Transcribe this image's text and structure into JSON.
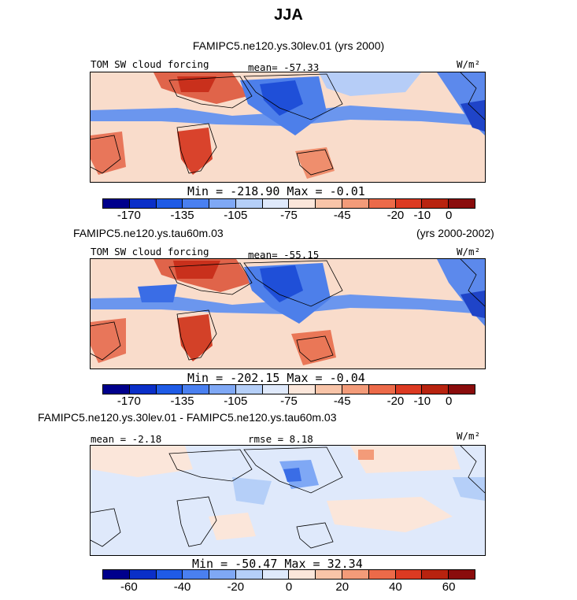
{
  "chart_data": {
    "type": "heatmap",
    "title": "JJA",
    "panels": [
      {
        "id": "p1",
        "case_title": "FAMIPC5.ne120.ys.30lev.01 (yrs 2000)",
        "left_label": "TOM SW cloud forcing",
        "center_label": "mean= -57.33",
        "right_label": "W/m²",
        "min_max": "Min = -218.90 Max =  -0.01",
        "levels": [
          "-170",
          "-135",
          "-105",
          "-75",
          "-45",
          "-20",
          "-10",
          "0"
        ],
        "field_min": -218.9,
        "field_max": -0.01,
        "field_mean": -57.33
      },
      {
        "id": "p2",
        "case_title": "FAMIPC5.ne120.ys.tau60m.03",
        "case_years": "(yrs 2000-2002)",
        "left_label": "TOM SW cloud forcing",
        "center_label": "mean= -55.15",
        "right_label": "W/m²",
        "min_max": "Min = -202.15 Max =  -0.04",
        "levels": [
          "-170",
          "-135",
          "-105",
          "-75",
          "-45",
          "-20",
          "-10",
          "0"
        ],
        "field_min": -202.15,
        "field_max": -0.04,
        "field_mean": -55.15
      },
      {
        "id": "p3",
        "case_title": "FAMIPC5.ne120.ys.30lev.01 - FAMIPC5.ne120.ys.tau60m.03",
        "left_label": "mean =  -2.18",
        "center_label": "rmse =   8.18",
        "right_label": "W/m²",
        "min_max": "Min = -50.47 Max =  32.34",
        "levels": [
          "-60",
          "-40",
          "-20",
          "0",
          "20",
          "40",
          "60"
        ],
        "field_min": -50.47,
        "field_max": 32.34,
        "field_mean": -2.18,
        "rmse": 8.18
      }
    ],
    "colorbar_colors": [
      "#00008c",
      "#0a2fc8",
      "#1f5be6",
      "#4a80f0",
      "#7fa8f5",
      "#b5cff8",
      "#dfe9fb",
      "#fbe6da",
      "#f8c4a8",
      "#f39b79",
      "#ec6a49",
      "#dc3a22",
      "#b8230f",
      "#8a0c0c"
    ]
  }
}
